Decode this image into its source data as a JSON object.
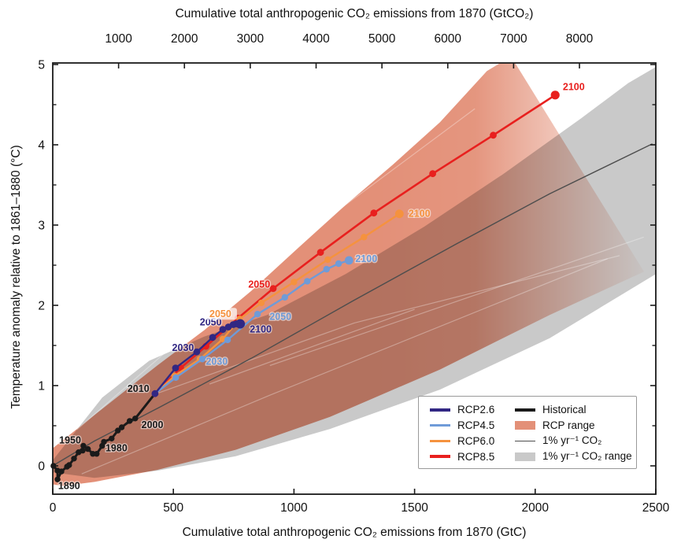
{
  "figure": {
    "type": "scientific-figure",
    "description_visible": "Temperature anomaly versus cumulative CO2 emissions with RCP scenarios"
  },
  "chart_data": {
    "type": "line",
    "top_axis": {
      "label": "Cumulative total anthropogenic CO₂ emissions from 1870 (GtCO₂)",
      "tick_values": [
        1000,
        2000,
        3000,
        4000,
        5000,
        6000,
        7000,
        8000
      ],
      "tick_labels": [
        "1000",
        "2000",
        "3000",
        "4000",
        "5000",
        "6000",
        "7000",
        "8000"
      ],
      "gtc_per_gtco2": 0.27293
    },
    "bottom_axis": {
      "label": "Cumulative total anthropogenic CO₂ emissions from 1870 (GtC)",
      "tick_values": [
        0,
        500,
        1000,
        1500,
        2000,
        2500
      ],
      "tick_labels": [
        "0",
        "500",
        "1000",
        "1500",
        "2000",
        "2500"
      ],
      "range": [
        0,
        2500
      ]
    },
    "y_axis": {
      "label": "Temperature anomaly relative to 1861–1880 (°C)",
      "tick_values": [
        0,
        1,
        2,
        3,
        4,
        5
      ],
      "tick_labels": [
        "0",
        "1",
        "2",
        "3",
        "4",
        "5"
      ],
      "minor_step": 0.5,
      "range": [
        -0.35,
        5.02
      ]
    },
    "grid": false,
    "ranges": [
      {
        "name": "1% yr⁻¹ CO₂ range",
        "color": "#c9c9c9",
        "upper": [
          [
            0,
            0.07
          ],
          [
            205,
            0.85
          ],
          [
            400,
            1.31
          ],
          [
            628,
            1.61
          ],
          [
            889,
            1.88
          ],
          [
            1214,
            2.39
          ],
          [
            1540,
            2.98
          ],
          [
            1865,
            3.63
          ],
          [
            2191,
            4.33
          ],
          [
            2386,
            4.77
          ],
          [
            2500,
            4.97
          ]
        ],
        "lower": [
          [
            0,
            -0.08
          ],
          [
            173,
            -0.15
          ],
          [
            433,
            -0.06
          ],
          [
            758,
            0.12
          ],
          [
            1149,
            0.46
          ],
          [
            1605,
            0.95
          ],
          [
            2060,
            1.59
          ],
          [
            2500,
            2.39
          ]
        ],
        "fade": false
      },
      {
        "name": "RCP range",
        "color": "#e39078",
        "upper": [
          [
            0,
            0.22
          ],
          [
            205,
            0.71
          ],
          [
            433,
            1.25
          ],
          [
            628,
            1.69
          ],
          [
            823,
            2.18
          ],
          [
            1019,
            2.72
          ],
          [
            1214,
            3.25
          ],
          [
            1409,
            3.75
          ],
          [
            1605,
            4.28
          ],
          [
            1800,
            4.92
          ],
          [
            1900,
            5.1
          ]
        ],
        "lower": [
          [
            0,
            -0.23
          ],
          [
            42,
            -0.25
          ],
          [
            173,
            -0.2
          ],
          [
            433,
            -0.05
          ],
          [
            758,
            0.2
          ],
          [
            1149,
            0.61
          ],
          [
            1605,
            1.2
          ],
          [
            2060,
            1.88
          ],
          [
            2451,
            2.42
          ]
        ],
        "fade": true
      }
    ],
    "inner_range_edges": [
      [
        [
          100,
          0.45
        ],
        [
          900,
          2.55
        ],
        [
          1750,
          4.45
        ]
      ],
      [
        [
          120,
          -0.1
        ],
        [
          900,
          0.88
        ],
        [
          2300,
          2.58
        ]
      ],
      [
        [
          430,
          0.9
        ],
        [
          1250,
          1.78
        ],
        [
          2350,
          2.62
        ]
      ],
      [
        [
          650,
          1.02
        ],
        [
          1500,
          1.95
        ]
      ],
      [
        [
          900,
          1.25
        ],
        [
          2450,
          2.85
        ]
      ]
    ],
    "series": [
      {
        "name": "1% yr⁻¹ CO₂",
        "color": "#4d4d4d",
        "width": 1.4,
        "marker_r": 0,
        "end_r": 0,
        "points": [
          [
            10,
            0.02
          ],
          [
            173,
            0.31
          ],
          [
            443,
            0.73
          ],
          [
            823,
            1.34
          ],
          [
            1247,
            2.06
          ],
          [
            1670,
            2.76
          ],
          [
            2060,
            3.39
          ],
          [
            2484,
            4.01
          ]
        ]
      },
      {
        "name": "Historical",
        "color": "#1a1a1a",
        "width": 3,
        "marker_r": 3.7,
        "end_r": 4.2,
        "points": [
          [
            3,
            0.0
          ],
          [
            20,
            -0.06
          ],
          [
            20,
            -0.17
          ],
          [
            36,
            -0.07
          ],
          [
            59,
            -0.01
          ],
          [
            68,
            0.01
          ],
          [
            88,
            0.09
          ],
          [
            107,
            0.17
          ],
          [
            124,
            0.19
          ],
          [
            127,
            0.25
          ],
          [
            146,
            0.21
          ],
          [
            166,
            0.15
          ],
          [
            182,
            0.15
          ],
          [
            205,
            0.25
          ],
          [
            212,
            0.3
          ],
          [
            244,
            0.34
          ],
          [
            270,
            0.44
          ],
          [
            286,
            0.48
          ],
          [
            319,
            0.56
          ],
          [
            342,
            0.59
          ],
          [
            424,
            0.9
          ]
        ]
      },
      {
        "name": "RCP8.5",
        "color": "#e8201e",
        "width": 2.6,
        "marker_r": 4.4,
        "end_r": 5.6,
        "points": [
          [
            424,
            0.9
          ],
          [
            530,
            1.22
          ],
          [
            635,
            1.49
          ],
          [
            768,
            1.84
          ],
          [
            914,
            2.21
          ],
          [
            1110,
            2.66
          ],
          [
            1331,
            3.15
          ],
          [
            1575,
            3.64
          ],
          [
            1826,
            4.12
          ],
          [
            2083,
            4.62
          ]
        ]
      },
      {
        "name": "RCP6.0",
        "color": "#f5923e",
        "width": 2.4,
        "marker_r": 4.2,
        "end_r": 5.4,
        "points": [
          [
            424,
            0.9
          ],
          [
            505,
            1.12
          ],
          [
            610,
            1.33
          ],
          [
            705,
            1.58
          ],
          [
            775,
            1.83
          ],
          [
            865,
            2.03
          ],
          [
            1000,
            2.29
          ],
          [
            1140,
            2.57
          ],
          [
            1290,
            2.85
          ],
          [
            1437,
            3.14
          ]
        ]
      },
      {
        "name": "RCP4.5",
        "color": "#6f9bd8",
        "width": 2.4,
        "marker_r": 4.2,
        "end_r": 5.4,
        "points": [
          [
            424,
            0.9
          ],
          [
            510,
            1.1
          ],
          [
            620,
            1.33
          ],
          [
            725,
            1.57
          ],
          [
            849,
            1.89
          ],
          [
            962,
            2.1
          ],
          [
            1055,
            2.3
          ],
          [
            1135,
            2.45
          ],
          [
            1185,
            2.52
          ],
          [
            1228,
            2.56
          ]
        ]
      },
      {
        "name": "RCP2.6",
        "color": "#312783",
        "width": 2.4,
        "marker_r": 4.4,
        "end_r": 6,
        "points": [
          [
            424,
            0.9
          ],
          [
            509,
            1.22
          ],
          [
            597,
            1.42
          ],
          [
            663,
            1.6
          ],
          [
            705,
            1.7
          ],
          [
            728,
            1.73
          ],
          [
            748,
            1.76
          ],
          [
            761,
            1.77
          ],
          [
            770,
            1.77
          ],
          [
            777,
            1.77
          ]
        ]
      }
    ],
    "annotations": [
      {
        "text": "1890",
        "x": 68,
        "y": -0.25,
        "color": "#1a1a1a",
        "halo": false
      },
      {
        "text": "1950",
        "x": 72,
        "y": 0.32,
        "color": "#1a1a1a",
        "halo": false
      },
      {
        "text": "1980",
        "x": 264,
        "y": 0.22,
        "color": "#1a1a1a",
        "halo": false
      },
      {
        "text": "2000",
        "x": 413,
        "y": 0.51,
        "color": "#1a1a1a",
        "halo": false
      },
      {
        "text": "2010",
        "x": 355,
        "y": 0.96,
        "color": "#1a1a1a",
        "halo": false
      },
      {
        "text": "2030",
        "x": 540,
        "y": 1.47,
        "color": "#312783",
        "halo": false
      },
      {
        "text": "2050",
        "x": 655,
        "y": 1.79,
        "color": "#312783",
        "halo": false
      },
      {
        "text": "2100",
        "x": 862,
        "y": 1.7,
        "color": "#312783",
        "halo": false
      },
      {
        "text": "2030",
        "x": 680,
        "y": 1.3,
        "color": "#6f9bd8",
        "halo": false
      },
      {
        "text": "2050",
        "x": 944,
        "y": 1.86,
        "color": "#6f9bd8",
        "halo": false
      },
      {
        "text": "2100",
        "x": 1300,
        "y": 2.58,
        "color": "#6f9bd8",
        "halo": false
      },
      {
        "text": "2050",
        "x": 695,
        "y": 1.89,
        "color": "#f5923e",
        "halo": true
      },
      {
        "text": "2100",
        "x": 1520,
        "y": 3.14,
        "color": "#f5923e",
        "halo": false
      },
      {
        "text": "2050",
        "x": 856,
        "y": 2.26,
        "color": "#e8201e",
        "halo": false
      },
      {
        "text": "2100",
        "x": 2160,
        "y": 4.72,
        "color": "#e8201e",
        "halo": false
      }
    ],
    "legend": {
      "columns": [
        {
          "items": [
            {
              "label": "RCP2.6",
              "swatch": "line",
              "color": "#312783"
            },
            {
              "label": "RCP4.5",
              "swatch": "line",
              "color": "#6f9bd8"
            },
            {
              "label": "RCP6.0",
              "swatch": "line",
              "color": "#f5923e"
            },
            {
              "label": "RCP8.5",
              "swatch": "line",
              "color": "#e8201e"
            }
          ]
        },
        {
          "items": [
            {
              "label": "Historical",
              "swatch": "line",
              "color": "#1a1a1a"
            },
            {
              "label": "RCP range",
              "swatch": "patch",
              "color": "#e39078"
            },
            {
              "label": "1% yr⁻¹ CO₂",
              "swatch": "thinline",
              "color": "#4d4d4d"
            },
            {
              "label": "1% yr⁻¹ CO₂ range",
              "swatch": "patch",
              "color": "#c9c9c9"
            }
          ]
        }
      ]
    }
  }
}
